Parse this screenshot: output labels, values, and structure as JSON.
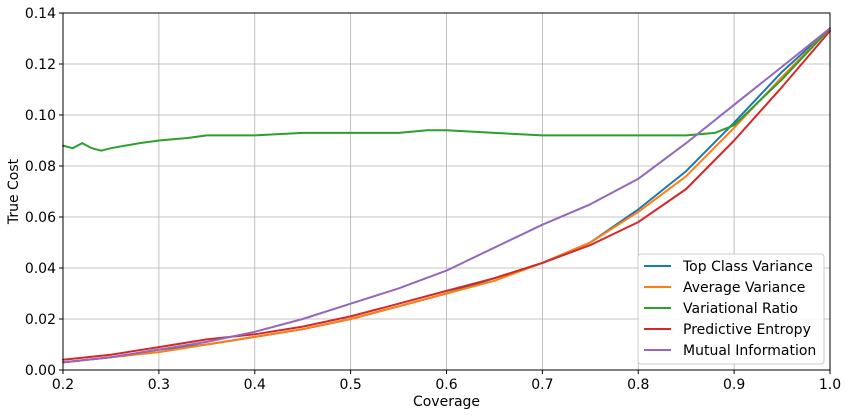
{
  "chart_data": {
    "type": "line",
    "title": "",
    "xlabel": "Coverage",
    "ylabel": "True Cost",
    "xlim": [
      0.2,
      1.0
    ],
    "ylim": [
      0.0,
      0.14
    ],
    "x_ticks": [
      "0.2",
      "0.3",
      "0.4",
      "0.5",
      "0.6",
      "0.7",
      "0.8",
      "0.9",
      "1.0"
    ],
    "y_ticks": [
      "0.00",
      "0.02",
      "0.04",
      "0.06",
      "0.08",
      "0.10",
      "0.12",
      "0.14"
    ],
    "grid": true,
    "legend_position": "lower-right",
    "series": [
      {
        "name": "Top Class Variance",
        "color": "#1f77b4",
        "x": [
          0.2,
          0.25,
          0.3,
          0.35,
          0.4,
          0.45,
          0.5,
          0.55,
          0.6,
          0.65,
          0.7,
          0.75,
          0.8,
          0.85,
          0.9,
          0.95,
          1.0
        ],
        "y": [
          0.003,
          0.005,
          0.008,
          0.01,
          0.013,
          0.016,
          0.02,
          0.025,
          0.03,
          0.036,
          0.042,
          0.05,
          0.063,
          0.078,
          0.097,
          0.117,
          0.134
        ]
      },
      {
        "name": "Average Variance",
        "color": "#ff7f0e",
        "x": [
          0.2,
          0.25,
          0.3,
          0.35,
          0.4,
          0.45,
          0.5,
          0.55,
          0.6,
          0.65,
          0.7,
          0.75,
          0.8,
          0.85,
          0.9,
          0.95,
          1.0
        ],
        "y": [
          0.003,
          0.005,
          0.007,
          0.01,
          0.013,
          0.016,
          0.02,
          0.025,
          0.03,
          0.035,
          0.042,
          0.05,
          0.062,
          0.076,
          0.095,
          0.115,
          0.134
        ]
      },
      {
        "name": "Variational Ratio",
        "color": "#2ca02c",
        "x": [
          0.2,
          0.21,
          0.22,
          0.23,
          0.24,
          0.25,
          0.28,
          0.3,
          0.33,
          0.35,
          0.38,
          0.4,
          0.45,
          0.5,
          0.55,
          0.58,
          0.6,
          0.65,
          0.7,
          0.75,
          0.8,
          0.85,
          0.88,
          0.9,
          0.95,
          1.0
        ],
        "y": [
          0.088,
          0.087,
          0.089,
          0.087,
          0.086,
          0.087,
          0.089,
          0.09,
          0.091,
          0.092,
          0.092,
          0.092,
          0.093,
          0.093,
          0.093,
          0.094,
          0.094,
          0.093,
          0.092,
          0.092,
          0.092,
          0.092,
          0.093,
          0.096,
          0.114,
          0.134
        ]
      },
      {
        "name": "Predictive Entropy",
        "color": "#d62728",
        "x": [
          0.2,
          0.25,
          0.3,
          0.35,
          0.4,
          0.45,
          0.5,
          0.55,
          0.6,
          0.65,
          0.7,
          0.75,
          0.8,
          0.85,
          0.9,
          0.95,
          1.0
        ],
        "y": [
          0.004,
          0.006,
          0.009,
          0.012,
          0.014,
          0.017,
          0.021,
          0.026,
          0.031,
          0.036,
          0.042,
          0.049,
          0.058,
          0.071,
          0.09,
          0.111,
          0.133
        ]
      },
      {
        "name": "Mutual Information",
        "color": "#9467bd",
        "x": [
          0.2,
          0.25,
          0.3,
          0.35,
          0.4,
          0.45,
          0.5,
          0.55,
          0.6,
          0.65,
          0.7,
          0.75,
          0.8,
          0.85,
          0.9,
          0.95,
          1.0
        ],
        "y": [
          0.003,
          0.005,
          0.008,
          0.011,
          0.015,
          0.02,
          0.026,
          0.032,
          0.039,
          0.048,
          0.057,
          0.065,
          0.075,
          0.089,
          0.104,
          0.119,
          0.134
        ]
      }
    ]
  }
}
